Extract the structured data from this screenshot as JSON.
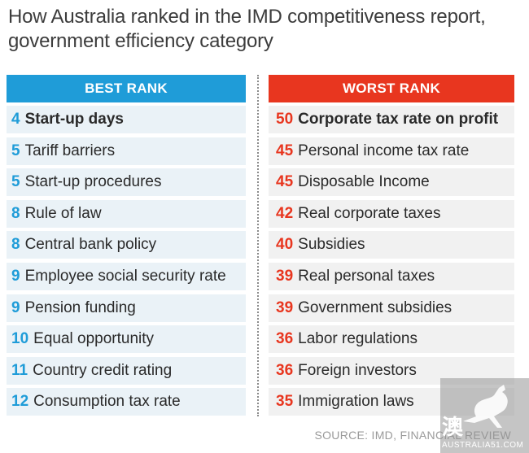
{
  "title": "How Australia ranked in the IMD competitiveness report, government efficiency category",
  "chart_data": {
    "type": "table",
    "columns": [
      {
        "header": "BEST RANK",
        "header_color": "#1f9cd8",
        "rank_color": "#1f9cd8",
        "rows": [
          {
            "rank": "4",
            "label": "Start-up days"
          },
          {
            "rank": "5",
            "label": "Tariff barriers"
          },
          {
            "rank": "5",
            "label": "Start-up procedures"
          },
          {
            "rank": "8",
            "label": "Rule of law"
          },
          {
            "rank": "8",
            "label": "Central bank policy"
          },
          {
            "rank": "9",
            "label": "Employee social security rate"
          },
          {
            "rank": "9",
            "label": "Pension funding"
          },
          {
            "rank": "10",
            "label": "Equal opportunity"
          },
          {
            "rank": "11",
            "label": "Country credit rating"
          },
          {
            "rank": "12",
            "label": "Consumption tax rate"
          }
        ]
      },
      {
        "header": "WORST RANK",
        "header_color": "#e8361f",
        "rank_color": "#e8361f",
        "rows": [
          {
            "rank": "50",
            "label": "Corporate tax rate on profit"
          },
          {
            "rank": "45",
            "label": "Personal income tax rate"
          },
          {
            "rank": "45",
            "label": "Disposable Income"
          },
          {
            "rank": "42",
            "label": "Real corporate taxes"
          },
          {
            "rank": "40",
            "label": "Subsidies"
          },
          {
            "rank": "39",
            "label": "Real personal taxes"
          },
          {
            "rank": "39",
            "label": "Government subsidies"
          },
          {
            "rank": "36",
            "label": "Labor regulations"
          },
          {
            "rank": "36",
            "label": "Foreign investors"
          },
          {
            "rank": "35",
            "label": "Immigration laws"
          }
        ]
      }
    ]
  },
  "source": "SOURCE: IMD, FINANCIAL REVIEW",
  "watermark": {
    "char": "澳",
    "text": "AUSTRALIA51.COM",
    "icon": "kangaroo-icon"
  }
}
